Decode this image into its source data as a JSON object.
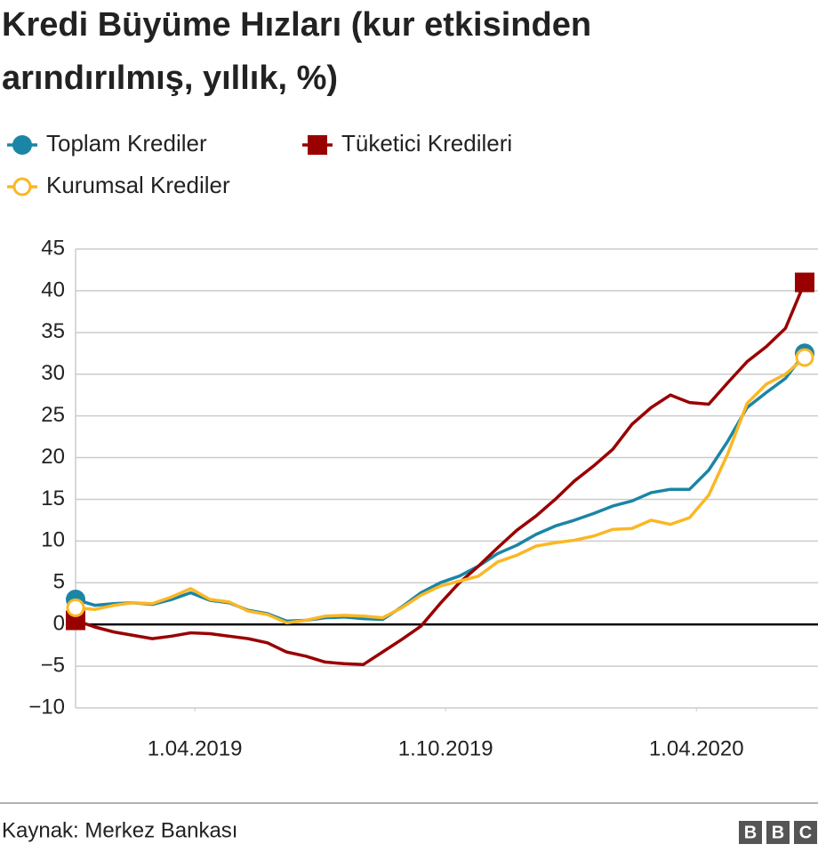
{
  "chart_data": {
    "type": "line",
    "title": [
      "Kredi Büyüme Hızları (kur etkisinden",
      "arındırılmış, yıllık, %)"
    ],
    "source": "Kaynak: Merkez Bankası",
    "logo": [
      "B",
      "B",
      "C"
    ],
    "x": [
      "2019-01-04",
      "2019-01-18",
      "2019-02-01",
      "2019-02-15",
      "2019-03-01",
      "2019-03-15",
      "2019-03-29",
      "2019-04-12",
      "2019-04-26",
      "2019-05-10",
      "2019-05-24",
      "2019-06-07",
      "2019-06-21",
      "2019-07-05",
      "2019-07-19",
      "2019-08-02",
      "2019-08-16",
      "2019-08-30",
      "2019-09-13",
      "2019-09-27",
      "2019-10-11",
      "2019-10-25",
      "2019-11-08",
      "2019-11-22",
      "2019-12-06",
      "2019-12-20",
      "2020-01-03",
      "2020-01-17",
      "2020-01-31",
      "2020-02-14",
      "2020-02-28",
      "2020-03-13",
      "2020-03-27",
      "2020-04-10",
      "2020-04-24",
      "2020-05-08",
      "2020-05-22",
      "2020-06-05",
      "2020-06-19"
    ],
    "series": [
      {
        "name": "Toplam Krediler",
        "color": "#1a85a5",
        "marker": "circle",
        "values": [
          3,
          2.3,
          2.5,
          2.6,
          2.4,
          3.0,
          3.8,
          2.9,
          2.6,
          1.7,
          1.3,
          0.4,
          0.5,
          0.8,
          0.9,
          0.7,
          0.6,
          2.1,
          3.8,
          5.0,
          5.8,
          7.0,
          8.5,
          9.5,
          10.8,
          11.8,
          12.5,
          13.3,
          14.2,
          14.8,
          15.8,
          16.2,
          16.2,
          18.5,
          22.0,
          26.0,
          27.8,
          29.5,
          32.5
        ]
      },
      {
        "name": "Tüketici Kredileri",
        "color": "#990000",
        "marker": "square",
        "values": [
          0.5,
          -0.3,
          -0.9,
          -1.3,
          -1.7,
          -1.4,
          -1.0,
          -1.1,
          -1.4,
          -1.7,
          -2.2,
          -3.3,
          -3.8,
          -4.5,
          -4.7,
          -4.8,
          -3.3,
          -1.8,
          -0.2,
          2.5,
          5.0,
          7.0,
          9.2,
          11.3,
          13.0,
          15.0,
          17.2,
          19.0,
          21.0,
          24.0,
          26.0,
          27.5,
          26.6,
          26.4,
          29.0,
          31.5,
          33.3,
          35.5,
          41
        ]
      },
      {
        "name": "Kurumsal Krediler",
        "color": "#fbb724",
        "marker": "circle-open",
        "values": [
          2,
          1.8,
          2.3,
          2.6,
          2.5,
          3.3,
          4.3,
          3.0,
          2.7,
          1.6,
          1.2,
          0.2,
          0.5,
          1.0,
          1.1,
          1.0,
          0.8,
          2.0,
          3.5,
          4.6,
          5.2,
          5.8,
          7.5,
          8.3,
          9.4,
          9.8,
          10.1,
          10.6,
          11.4,
          11.5,
          12.5,
          12.0,
          12.8,
          15.5,
          20.5,
          26.5,
          28.8,
          30.0,
          32.0
        ]
      }
    ],
    "xlim": [
      "2019-01-04",
      "2020-06-19"
    ],
    "xticks": [
      {
        "value": "2019-04-01",
        "label": "1.04.2019"
      },
      {
        "value": "2019-10-01",
        "label": "1.10.2019"
      },
      {
        "value": "2020-04-01",
        "label": "1.04.2020"
      }
    ],
    "ylim": [
      -10,
      45
    ],
    "yticks": [
      {
        "value": -10,
        "label": "−10"
      },
      {
        "value": -5,
        "label": "−5"
      },
      0,
      5,
      10,
      15,
      20,
      25,
      30,
      35,
      40,
      45
    ],
    "grid": true
  }
}
